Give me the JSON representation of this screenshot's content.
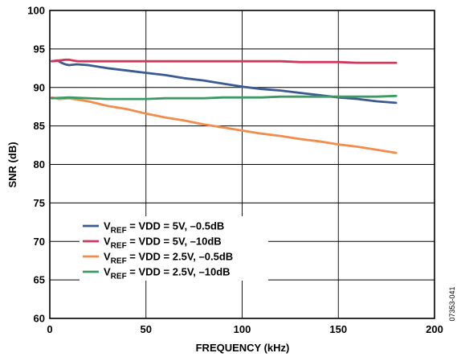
{
  "chart_data": {
    "type": "line",
    "title": "",
    "xlabel": "FREQUENCY (kHz)",
    "ylabel": "SNR (dB)",
    "xlim": [
      0,
      200
    ],
    "ylim": [
      60,
      100
    ],
    "xticks": [
      "0",
      "50",
      "100",
      "150",
      "200"
    ],
    "yticks": [
      "60",
      "65",
      "70",
      "75",
      "80",
      "85",
      "90",
      "95",
      "100"
    ],
    "grid": true,
    "legend_position": "bottom-left",
    "figure_id": "07353-041",
    "series": [
      {
        "name": "V_REF = VDD = 5V, –0.5dB",
        "label_main": "V",
        "label_sub": "REF",
        "label_rest": " = VDD = 5V, –0.5dB",
        "color": "#3a5a92",
        "x": [
          1,
          4,
          6,
          8,
          10,
          14,
          20,
          30,
          40,
          50,
          60,
          70,
          80,
          90,
          100,
          110,
          120,
          130,
          140,
          150,
          160,
          170,
          180
        ],
        "y": [
          93.4,
          93.5,
          93.2,
          93.0,
          92.9,
          93.0,
          92.9,
          92.5,
          92.2,
          91.9,
          91.6,
          91.2,
          90.9,
          90.5,
          90.1,
          89.8,
          89.6,
          89.3,
          89.0,
          88.7,
          88.5,
          88.2,
          88.0
        ]
      },
      {
        "name": "V_REF = VDD = 5V, –10dB",
        "label_main": "V",
        "label_sub": "REF",
        "label_rest": " = VDD = 5V, –10dB",
        "color": "#d0375a",
        "x": [
          1,
          5,
          8,
          10,
          12,
          15,
          20,
          30,
          40,
          50,
          60,
          70,
          80,
          90,
          100,
          110,
          120,
          130,
          140,
          150,
          160,
          170,
          180
        ],
        "y": [
          93.4,
          93.5,
          93.6,
          93.6,
          93.5,
          93.4,
          93.4,
          93.4,
          93.4,
          93.4,
          93.4,
          93.4,
          93.4,
          93.4,
          93.4,
          93.4,
          93.4,
          93.3,
          93.3,
          93.3,
          93.2,
          93.2,
          93.2
        ]
      },
      {
        "name": "V_REF = VDD = 2.5V, –0.5dB",
        "label_main": "V",
        "label_sub": "REF",
        "label_rest": " = VDD = 2.5V, –0.5dB",
        "color": "#f28c4a",
        "x": [
          1,
          5,
          10,
          20,
          30,
          40,
          50,
          60,
          70,
          80,
          90,
          100,
          110,
          120,
          130,
          140,
          150,
          160,
          170,
          180
        ],
        "y": [
          88.7,
          88.5,
          88.6,
          88.2,
          87.6,
          87.2,
          86.6,
          86.1,
          85.7,
          85.2,
          84.8,
          84.4,
          84.0,
          83.7,
          83.3,
          83.0,
          82.6,
          82.3,
          81.9,
          81.5
        ]
      },
      {
        "name": "V_REF = VDD = 2.5V, –10dB",
        "label_main": "V",
        "label_sub": "REF",
        "label_rest": " = VDD = 2.5V, –10dB",
        "color": "#3d9a62",
        "x": [
          1,
          10,
          20,
          30,
          40,
          50,
          60,
          70,
          80,
          90,
          100,
          110,
          120,
          130,
          140,
          150,
          160,
          170,
          180
        ],
        "y": [
          88.6,
          88.7,
          88.6,
          88.5,
          88.5,
          88.5,
          88.6,
          88.6,
          88.6,
          88.7,
          88.7,
          88.7,
          88.8,
          88.8,
          88.8,
          88.8,
          88.8,
          88.8,
          88.9
        ]
      }
    ]
  }
}
